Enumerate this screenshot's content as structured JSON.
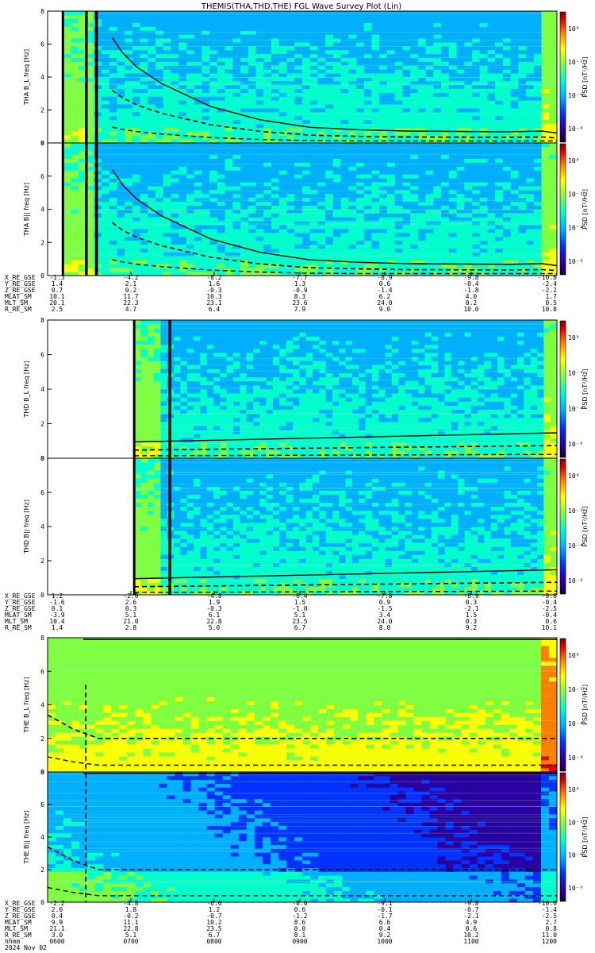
{
  "title": "THEMIS(THA,THD,THE) FGL Wave Survey Plot (Lin)",
  "colors": {
    "colorbar_stops": [
      "#1a0033",
      "#2a00a0",
      "#0033ff",
      "#00b0ff",
      "#00ffcc",
      "#80ff40",
      "#ffff00",
      "#ff8000",
      "#e00000",
      "#800000"
    ],
    "curve": "#000000"
  },
  "colorbar_ticks": [
    "10⁰",
    "10⁻²",
    "10⁻⁴",
    "10⁻⁶"
  ],
  "colorbar_label": "PSD [nT²/Hz]",
  "chart_data": [
    {
      "type": "heatmap",
      "panel": "THA B_L",
      "ylabel": "THA B_L freq [Hz]",
      "ylim": [
        0,
        8
      ],
      "yticks": [
        "0",
        "2",
        "4",
        "6",
        "8"
      ],
      "data_start_frac": 0.03,
      "strong_band_hz": [
        0.0,
        1.0
      ],
      "gap_lines_frac": [
        0.076,
        0.096
      ],
      "cyclotron_curve_x": [
        0.1,
        0.12,
        0.15,
        0.2,
        0.3,
        0.4,
        0.5,
        0.6,
        0.7,
        0.8,
        0.9,
        0.97,
        1.0
      ],
      "cyclotron_curve_y": [
        6.4,
        5.5,
        4.6,
        3.6,
        2.2,
        1.4,
        0.95,
        0.8,
        0.72,
        0.7,
        0.68,
        0.72,
        0.6
      ]
    },
    {
      "type": "heatmap",
      "panel": "THA B||",
      "ylabel": "THA B|| freq [Hz]",
      "ylim": [
        0,
        8
      ],
      "yticks": [
        "0",
        "2",
        "4",
        "6",
        "8"
      ],
      "data_start_frac": 0.03,
      "strong_band_hz": [
        0.0,
        1.0
      ]
    },
    {
      "type": "heatmap",
      "panel": "THD B_L",
      "ylabel": "THD B_L freq [Hz]",
      "ylim": [
        0,
        8
      ],
      "yticks": [
        "0",
        "2",
        "4",
        "6",
        "8"
      ],
      "data_start_frac": 0.17,
      "strong_band_hz": [
        0.0,
        1.0
      ],
      "gap_lines_frac": [
        0.24
      ]
    },
    {
      "type": "heatmap",
      "panel": "THD B||",
      "ylabel": "THD B|| freq [Hz]",
      "ylim": [
        0,
        8
      ],
      "yticks": [
        "0",
        "2",
        "4",
        "6",
        "8"
      ],
      "data_start_frac": 0.17,
      "strong_band_hz": [
        0.0,
        1.0
      ]
    },
    {
      "type": "heatmap",
      "panel": "THE B_L",
      "ylabel": "THE B_L freq [Hz]",
      "ylim": [
        0,
        8
      ],
      "yticks": [
        "0",
        "2",
        "4",
        "6",
        "8"
      ],
      "data_start_frac": 0.0,
      "strong_band_hz": [
        0.0,
        1.5
      ]
    },
    {
      "type": "heatmap",
      "panel": "THE B||",
      "ylabel": "THE B|| freq [Hz]",
      "ylim": [
        0,
        8
      ],
      "yticks": [
        "0",
        "2",
        "4",
        "6",
        "8"
      ],
      "data_start_frac": 0.0,
      "strong_band_hz": [
        0.0,
        2.0
      ]
    }
  ],
  "ephemeris": [
    {
      "rows": [
        {
          "name": "X_RE_GSE",
          "values": [
            "-1.3",
            "-4.2",
            "-8.2",
            "-7.7",
            "-8.9",
            "-9.8",
            "-10.8"
          ]
        },
        {
          "name": "Y_RE_GSE",
          "values": [
            "1.4",
            "2.1",
            "1.6",
            "1.3",
            "0.6",
            "-0.4",
            "-2.4"
          ]
        },
        {
          "name": "Z_RE_GSE",
          "values": [
            "0.7",
            "0.2",
            "-0.3",
            "-0.9",
            "-1.4",
            "-1.8",
            "-2.2"
          ]
        },
        {
          "name": "MLAT_SM",
          "values": [
            "10.1",
            "11.7",
            "10.3",
            "8.3",
            "6.2",
            "4.0",
            "1.7"
          ]
        },
        {
          "name": "MLT_SM",
          "values": [
            "20.1",
            "22.3",
            "23.1",
            "23.6",
            "24.0",
            "0.2",
            "0.5"
          ]
        },
        {
          "name": "R_RE_SM",
          "values": [
            "2.5",
            "4.7",
            "6.4",
            "7.9",
            "9.0",
            "10.0",
            "10.8"
          ]
        }
      ]
    },
    {
      "rows": [
        {
          "name": "X_RE_GSE",
          "values": [
            "1.2",
            "-2.0",
            "-4.8",
            "-6.4",
            "-7.8",
            "-8.9",
            "-9.8"
          ]
        },
        {
          "name": "Y_RE_GSE",
          "values": [
            "-1.6",
            "2.6",
            "1.9",
            "1.5",
            "0.9",
            "0.3",
            "-0.4"
          ]
        },
        {
          "name": "Z_RE_GSE",
          "values": [
            "0.1",
            "0.3",
            "-0.3",
            "-1.0",
            "-1.5",
            "-2.1",
            "-2.5"
          ]
        },
        {
          "name": "MLAT_SM",
          "values": [
            "-3.9",
            "5.1",
            "6.1",
            "5.1",
            "3.4",
            "1.5",
            "-0.4"
          ]
        },
        {
          "name": "MLT_SM",
          "values": [
            "10.4",
            "21.0",
            "22.8",
            "23.5",
            "24.0",
            "0.3",
            "0.6"
          ]
        },
        {
          "name": "R_RE_SM",
          "values": [
            "1.4",
            "2.8",
            "5.0",
            "6.7",
            "8.0",
            "9.2",
            "10.1"
          ]
        }
      ]
    },
    {
      "rows": [
        {
          "name": "X_RE_GSE",
          "values": [
            "-2.2",
            "-4.8",
            "-6.6",
            "-8.0",
            "-9.1",
            "-9.8",
            "-10.6"
          ]
        },
        {
          "name": "Y_RE_GSE",
          "values": [
            "2.0",
            "1.8",
            "1.2",
            "0.6",
            "-0.1",
            "-0.7",
            "-1.4"
          ]
        },
        {
          "name": "Z_RE_GSE",
          "values": [
            "0.4",
            "-0.2",
            "-0.7",
            "-1.2",
            "-1.7",
            "-2.1",
            "-2.5"
          ]
        },
        {
          "name": "MLAT_SM",
          "values": [
            "9.9",
            "11.1",
            "10.2",
            "8.6",
            "6.6",
            "4.9",
            "2.7"
          ]
        },
        {
          "name": "MLT_SM",
          "values": [
            "21.1",
            "22.8",
            "23.5",
            "0.0",
            "0.4",
            "0.6",
            "0.8"
          ]
        },
        {
          "name": "R_RE_SM",
          "values": [
            "3.0",
            "5.1",
            "6.7",
            "8.1",
            "9.2",
            "10.2",
            "11.0"
          ]
        },
        {
          "name": "hhmm",
          "values": [
            "0600",
            "0700",
            "0800",
            "0900",
            "1000",
            "1100",
            "1200"
          ]
        }
      ],
      "date": "2024 Nov 02"
    }
  ]
}
